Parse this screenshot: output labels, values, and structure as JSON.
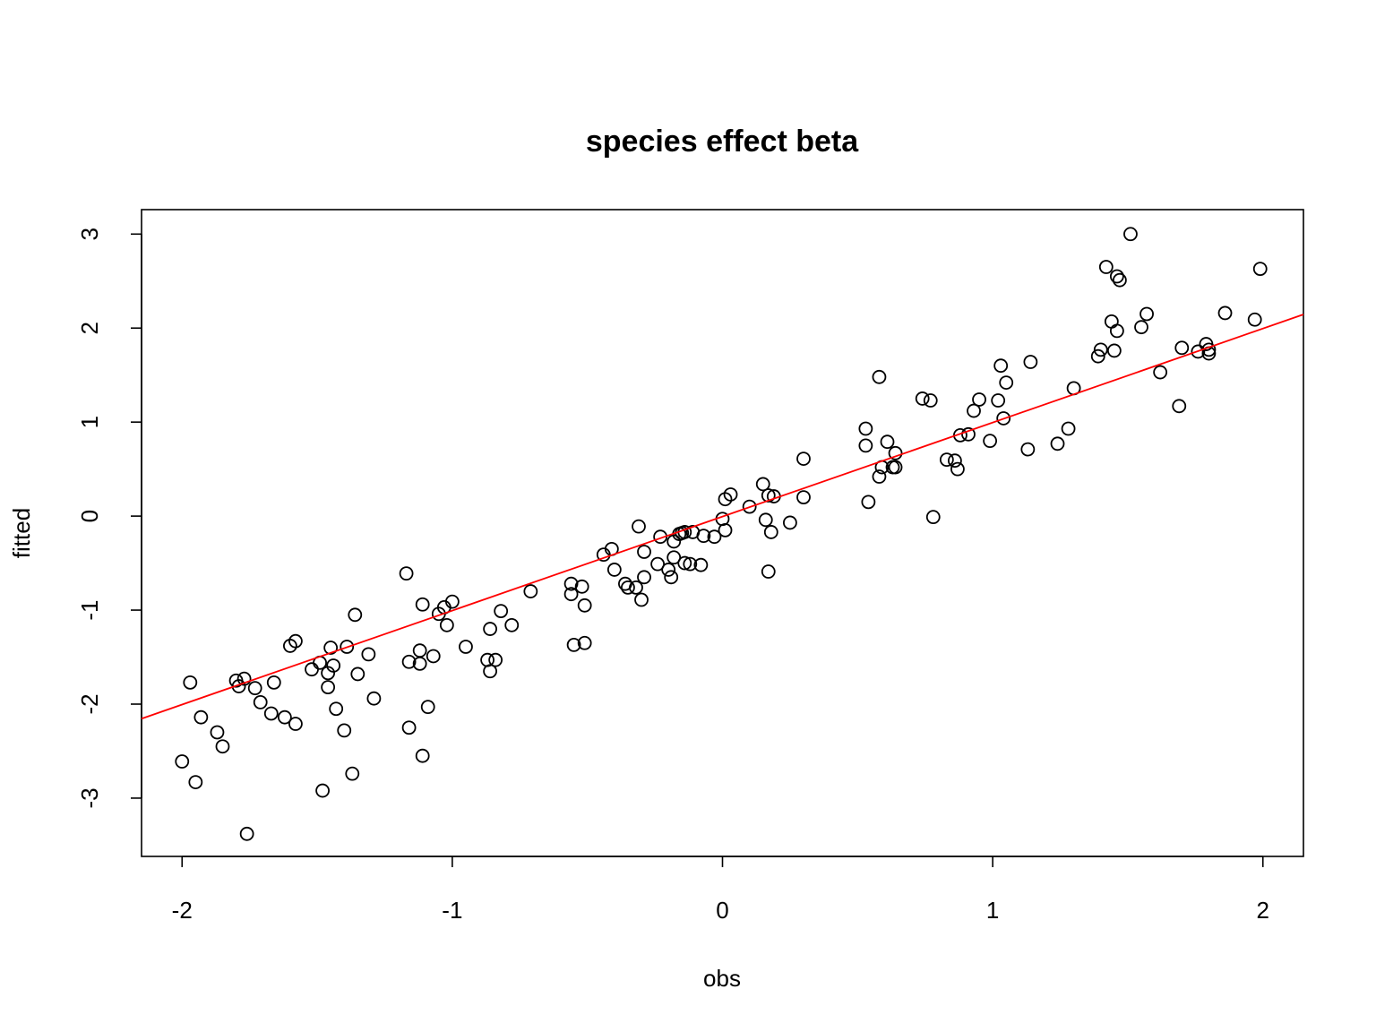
{
  "chart_data": {
    "type": "scatter",
    "title": "species effect beta",
    "xlabel": "obs",
    "ylabel": "fitted",
    "xlim": [
      -2.15,
      2.15
    ],
    "ylim": [
      -3.62,
      3.26
    ],
    "xticks": [
      -2,
      -1,
      0,
      1,
      2
    ],
    "xtick_labels": [
      "-2",
      "-1",
      "0",
      "1",
      "2"
    ],
    "yticks": [
      -3,
      -2,
      -1,
      0,
      1,
      2,
      3
    ],
    "ytick_labels": [
      "-3",
      "-2",
      "-1",
      "0",
      "1",
      "2",
      "3"
    ],
    "grid": false,
    "colors": {
      "points": "#000000",
      "line": "#ff0000"
    },
    "fit_line": {
      "intercept": -0.005,
      "slope": 1.0
    },
    "points": [
      [
        -2.0,
        -2.61
      ],
      [
        -1.97,
        -1.77
      ],
      [
        -1.95,
        -2.83
      ],
      [
        -1.93,
        -2.14
      ],
      [
        -1.87,
        -2.3
      ],
      [
        -1.85,
        -2.45
      ],
      [
        -1.8,
        -1.75
      ],
      [
        -1.79,
        -1.81
      ],
      [
        -1.77,
        -1.73
      ],
      [
        -1.76,
        -3.38
      ],
      [
        -1.73,
        -1.83
      ],
      [
        -1.71,
        -1.98
      ],
      [
        -1.67,
        -2.1
      ],
      [
        -1.66,
        -1.77
      ],
      [
        -1.62,
        -2.14
      ],
      [
        -1.6,
        -1.38
      ],
      [
        -1.58,
        -1.33
      ],
      [
        -1.58,
        -2.21
      ],
      [
        -1.52,
        -1.63
      ],
      [
        -1.49,
        -1.56
      ],
      [
        -1.48,
        -2.92
      ],
      [
        -1.46,
        -1.67
      ],
      [
        -1.46,
        -1.82
      ],
      [
        -1.45,
        -1.4
      ],
      [
        -1.44,
        -1.59
      ],
      [
        -1.43,
        -2.05
      ],
      [
        -1.4,
        -2.28
      ],
      [
        -1.39,
        -1.39
      ],
      [
        -1.37,
        -2.74
      ],
      [
        -1.36,
        -1.05
      ],
      [
        -1.35,
        -1.68
      ],
      [
        -1.31,
        -1.47
      ],
      [
        -1.29,
        -1.94
      ],
      [
        -1.17,
        -0.61
      ],
      [
        -1.16,
        -1.55
      ],
      [
        -1.16,
        -2.25
      ],
      [
        -1.12,
        -1.43
      ],
      [
        -1.12,
        -1.57
      ],
      [
        -1.11,
        -0.94
      ],
      [
        -1.11,
        -2.55
      ],
      [
        -1.09,
        -2.03
      ],
      [
        -1.07,
        -1.49
      ],
      [
        -1.05,
        -1.04
      ],
      [
        -1.03,
        -0.97
      ],
      [
        -1.02,
        -1.16
      ],
      [
        -1.0,
        -0.91
      ],
      [
        -0.95,
        -1.39
      ],
      [
        -0.87,
        -1.53
      ],
      [
        -0.86,
        -1.65
      ],
      [
        -0.86,
        -1.2
      ],
      [
        -0.84,
        -1.53
      ],
      [
        -0.82,
        -1.01
      ],
      [
        -0.78,
        -1.16
      ],
      [
        -0.71,
        -0.8
      ],
      [
        -0.56,
        -0.72
      ],
      [
        -0.56,
        -0.83
      ],
      [
        -0.55,
        -1.37
      ],
      [
        -0.52,
        -0.75
      ],
      [
        -0.51,
        -0.95
      ],
      [
        -0.51,
        -1.35
      ],
      [
        -0.44,
        -0.41
      ],
      [
        -0.41,
        -0.35
      ],
      [
        -0.4,
        -0.57
      ],
      [
        -0.36,
        -0.72
      ],
      [
        -0.35,
        -0.76
      ],
      [
        -0.32,
        -0.76
      ],
      [
        -0.31,
        -0.11
      ],
      [
        -0.3,
        -0.89
      ],
      [
        -0.29,
        -0.65
      ],
      [
        -0.29,
        -0.38
      ],
      [
        -0.24,
        -0.51
      ],
      [
        -0.23,
        -0.22
      ],
      [
        -0.2,
        -0.57
      ],
      [
        -0.19,
        -0.65
      ],
      [
        -0.18,
        -0.27
      ],
      [
        -0.18,
        -0.44
      ],
      [
        -0.16,
        -0.19
      ],
      [
        -0.15,
        -0.18
      ],
      [
        -0.14,
        -0.5
      ],
      [
        -0.14,
        -0.17
      ],
      [
        -0.12,
        -0.51
      ],
      [
        -0.11,
        -0.17
      ],
      [
        -0.08,
        -0.52
      ],
      [
        -0.07,
        -0.21
      ],
      [
        -0.03,
        -0.22
      ],
      [
        0.0,
        -0.03
      ],
      [
        0.01,
        0.18
      ],
      [
        0.01,
        -0.15
      ],
      [
        0.03,
        0.23
      ],
      [
        0.1,
        0.1
      ],
      [
        0.15,
        0.34
      ],
      [
        0.16,
        -0.04
      ],
      [
        0.17,
        0.22
      ],
      [
        0.17,
        -0.59
      ],
      [
        0.18,
        -0.17
      ],
      [
        0.19,
        0.21
      ],
      [
        0.25,
        -0.07
      ],
      [
        0.3,
        0.2
      ],
      [
        0.3,
        0.61
      ],
      [
        0.53,
        0.93
      ],
      [
        0.53,
        0.75
      ],
      [
        0.54,
        0.15
      ],
      [
        0.58,
        1.48
      ],
      [
        0.58,
        0.42
      ],
      [
        0.59,
        0.52
      ],
      [
        0.61,
        0.79
      ],
      [
        0.63,
        0.52
      ],
      [
        0.64,
        0.52
      ],
      [
        0.64,
        0.67
      ],
      [
        0.74,
        1.25
      ],
      [
        0.77,
        1.23
      ],
      [
        0.78,
        -0.01
      ],
      [
        0.83,
        0.6
      ],
      [
        0.86,
        0.59
      ],
      [
        0.87,
        0.5
      ],
      [
        0.88,
        0.86
      ],
      [
        0.91,
        0.87
      ],
      [
        0.93,
        1.12
      ],
      [
        0.95,
        1.24
      ],
      [
        0.99,
        0.8
      ],
      [
        1.02,
        1.23
      ],
      [
        1.03,
        1.6
      ],
      [
        1.04,
        1.04
      ],
      [
        1.05,
        1.42
      ],
      [
        1.13,
        0.71
      ],
      [
        1.14,
        1.64
      ],
      [
        1.24,
        0.77
      ],
      [
        1.28,
        0.93
      ],
      [
        1.3,
        1.36
      ],
      [
        1.39,
        1.7
      ],
      [
        1.4,
        1.77
      ],
      [
        1.42,
        2.65
      ],
      [
        1.44,
        2.07
      ],
      [
        1.45,
        1.76
      ],
      [
        1.46,
        1.97
      ],
      [
        1.46,
        2.55
      ],
      [
        1.47,
        2.51
      ],
      [
        1.51,
        3.0
      ],
      [
        1.55,
        2.01
      ],
      [
        1.57,
        2.15
      ],
      [
        1.62,
        1.53
      ],
      [
        1.69,
        1.17
      ],
      [
        1.7,
        1.79
      ],
      [
        1.76,
        1.75
      ],
      [
        1.79,
        1.83
      ],
      [
        1.8,
        1.73
      ],
      [
        1.8,
        1.77
      ],
      [
        1.86,
        2.16
      ],
      [
        1.97,
        2.09
      ],
      [
        1.99,
        2.63
      ]
    ]
  }
}
